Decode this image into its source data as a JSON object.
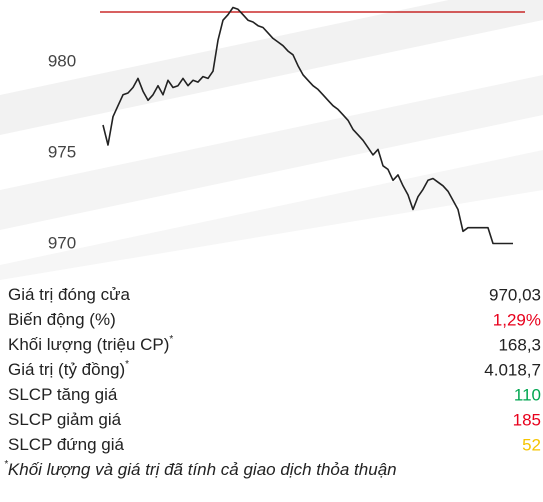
{
  "chart_data": {
    "type": "line",
    "color": "#222222",
    "reference_line": 982.75,
    "reference_color": "#c00000",
    "ylim": [
      969.7,
      983.3
    ],
    "yticks": [
      970,
      975,
      980
    ],
    "values": [
      976.54,
      975.44,
      977.0,
      977.6,
      978.2,
      978.3,
      978.6,
      979.1,
      978.4,
      977.9,
      978.2,
      978.7,
      978.2,
      979.0,
      978.6,
      978.7,
      979.1,
      978.7,
      979.0,
      978.9,
      979.2,
      979.1,
      979.5,
      981.2,
      982.3,
      982.6,
      983.0,
      982.9,
      982.6,
      982.3,
      982.2,
      982.0,
      981.9,
      981.6,
      981.3,
      981.1,
      980.9,
      980.6,
      980.4,
      979.8,
      979.3,
      979.0,
      978.7,
      978.5,
      978.2,
      977.9,
      977.6,
      977.4,
      977.1,
      976.8,
      976.3,
      976.0,
      975.7,
      975.3,
      974.9,
      975.2,
      974.3,
      974.1,
      973.5,
      973.8,
      973.2,
      972.7,
      971.9,
      972.6,
      973.0,
      973.5,
      973.6,
      973.4,
      973.2,
      972.9,
      972.4,
      971.9,
      970.7,
      970.9,
      970.9,
      970.9,
      970.9,
      970.9,
      970.03,
      970.03,
      970.03,
      970.03,
      970.03
    ]
  },
  "table": {
    "rows": [
      {
        "label": "Giá trị đóng cửa",
        "value": "970,03",
        "color": "#222222"
      },
      {
        "label": "Biến động (%)",
        "value": "1,29%",
        "color": "#e8001c"
      },
      {
        "label": "Khối lượng (triệu CP)",
        "note": "*",
        "value": "168,3",
        "color": "#222222"
      },
      {
        "label": "Giá trị (tỷ đồng)",
        "note": "*",
        "value": "4.018,7",
        "color": "#222222"
      },
      {
        "label": "SLCP tăng giá",
        "value": "110",
        "color": "#00a650"
      },
      {
        "label": "SLCP giảm giá",
        "value": "185",
        "color": "#e8001c"
      },
      {
        "label": "SLCP đứng giá",
        "value": "52",
        "color": "#f5c400"
      }
    ],
    "footnote": {
      "mark": "*",
      "text": "Khối lượng và giá trị đã tính cả giao dịch thỏa thuận"
    }
  }
}
